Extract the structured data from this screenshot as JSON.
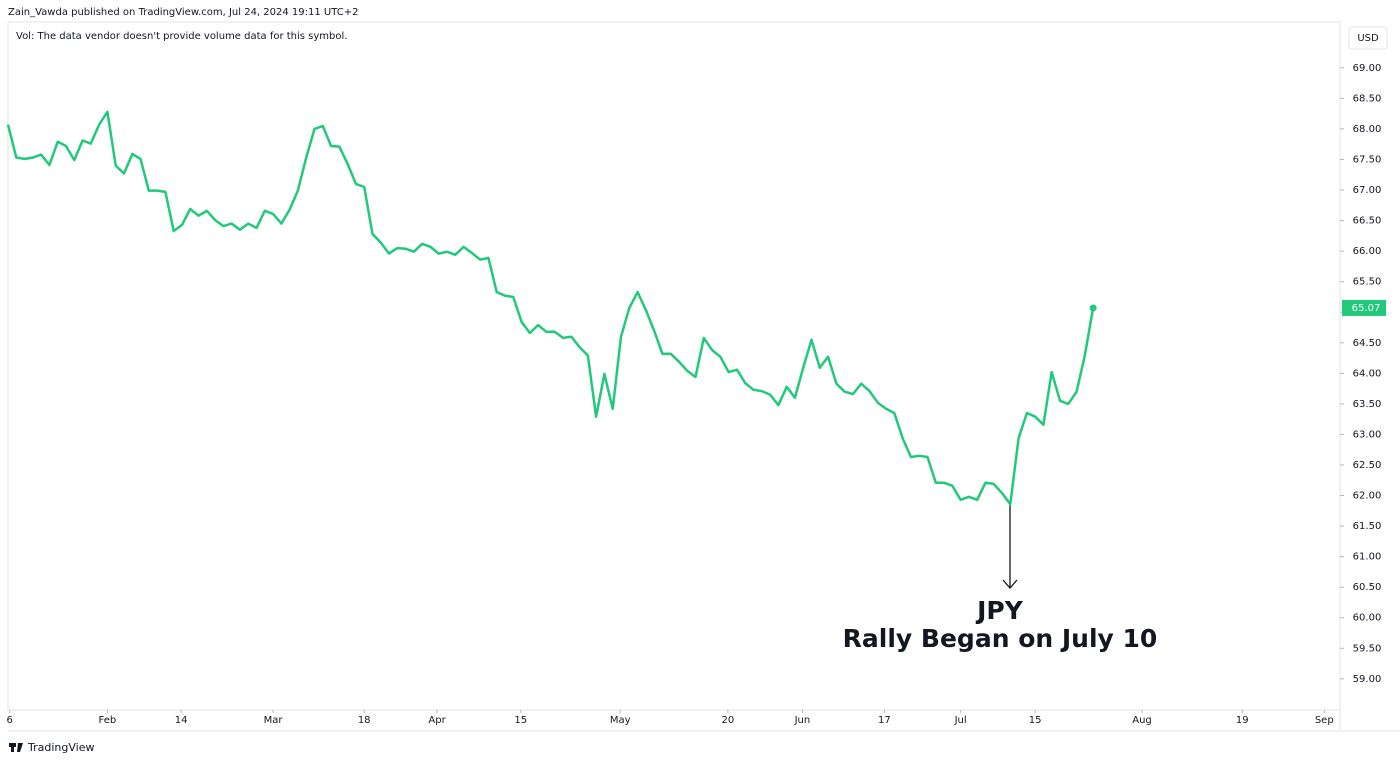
{
  "header": {
    "title": "Zain_Vawda published on TradingView.com, Jul 24, 2024 19:11 UTC+2",
    "volume_note": "Vol: The data vendor doesn't provide volume data for this symbol.",
    "currency": "USD"
  },
  "footer": {
    "brand": "TradingView"
  },
  "chart_data": {
    "type": "line",
    "color": "#22c97a",
    "annotation": {
      "title": "JPY",
      "text": "Rally Began on July 10"
    },
    "categories": [
      null,
      null,
      null,
      null,
      null,
      null,
      null,
      null,
      null,
      null,
      null,
      null,
      null,
      null,
      null,
      null,
      null,
      null,
      null,
      null,
      null,
      null,
      null,
      null,
      null,
      null,
      null,
      null,
      null,
      null,
      null,
      null,
      null,
      null,
      null,
      null,
      null,
      null,
      null,
      null,
      null,
      null,
      null,
      null,
      null,
      null,
      null,
      null,
      null,
      null,
      null,
      null,
      null,
      null,
      null,
      null,
      null,
      null,
      null,
      null,
      null,
      null,
      null,
      null,
      null,
      null,
      null,
      null,
      null,
      null,
      null,
      null,
      null,
      null,
      null,
      null,
      null,
      null,
      null,
      null,
      null,
      null,
      null,
      null,
      null,
      null,
      null,
      null,
      null,
      null,
      null,
      null,
      null,
      null,
      null,
      null,
      null,
      null,
      null,
      null,
      null,
      null,
      null,
      null,
      null,
      null,
      null,
      null,
      null,
      null,
      null,
      null,
      null,
      null,
      null,
      null,
      null,
      null,
      null,
      null,
      null,
      null,
      null,
      null,
      null,
      null,
      null,
      null,
      null,
      null,
      null,
      null
    ],
    "values": [
      68.07,
      67.53,
      67.51,
      67.53,
      67.58,
      67.41,
      67.79,
      67.72,
      67.49,
      67.81,
      67.76,
      68.07,
      68.28,
      67.4,
      67.27,
      67.59,
      67.51,
      66.99,
      66.99,
      66.97,
      66.33,
      66.43,
      66.69,
      66.58,
      66.66,
      66.51,
      66.41,
      66.45,
      66.35,
      66.45,
      66.38,
      66.66,
      66.61,
      66.45,
      66.68,
      66.99,
      67.53,
      68.0,
      68.05,
      67.72,
      67.71,
      67.43,
      67.1,
      67.05,
      66.28,
      66.14,
      65.96,
      66.05,
      66.04,
      65.99,
      66.12,
      66.07,
      65.96,
      65.99,
      65.94,
      66.07,
      65.97,
      65.86,
      65.89,
      65.33,
      65.27,
      65.25,
      64.84,
      64.66,
      64.79,
      64.68,
      64.68,
      64.58,
      64.6,
      64.43,
      64.29,
      63.29,
      63.99,
      63.42,
      64.6,
      65.07,
      65.33,
      65.04,
      64.7,
      64.32,
      64.32,
      64.19,
      64.04,
      63.94,
      64.58,
      64.38,
      64.27,
      64.02,
      64.06,
      63.84,
      63.73,
      63.71,
      63.65,
      63.48,
      63.78,
      63.6,
      64.09,
      64.55,
      64.09,
      64.27,
      63.83,
      63.7,
      63.66,
      63.83,
      63.71,
      63.52,
      63.42,
      63.35,
      62.94,
      62.63,
      62.65,
      62.63,
      62.21,
      62.21,
      62.16,
      61.93,
      61.98,
      61.93,
      62.21,
      62.19,
      62.04,
      61.86,
      62.94,
      63.35,
      63.29,
      63.16,
      64.02,
      63.55,
      63.5,
      63.7,
      64.3,
      65.07
    ],
    "xlim": [
      0,
      160.8
    ],
    "xticks": [
      {
        "value": 0.2,
        "label": "6"
      },
      {
        "value": 12.0,
        "label": "Feb"
      },
      {
        "value": 20.9,
        "label": "14"
      },
      {
        "value": 32.0,
        "label": "Mar"
      },
      {
        "value": 43.0,
        "label": "18"
      },
      {
        "value": 51.8,
        "label": "Apr"
      },
      {
        "value": 61.9,
        "label": "15"
      },
      {
        "value": 73.9,
        "label": "May"
      },
      {
        "value": 86.9,
        "label": "20"
      },
      {
        "value": 95.9,
        "label": "Jun"
      },
      {
        "value": 105.8,
        "label": "17"
      },
      {
        "value": 115.0,
        "label": "Jul"
      },
      {
        "value": 124.0,
        "label": "15"
      },
      {
        "value": 136.9,
        "label": "Aug"
      },
      {
        "value": 149.0,
        "label": "19"
      },
      {
        "value": 158.9,
        "label": "Sep"
      }
    ],
    "ylim": [
      58.49,
      69.75
    ],
    "yticks": [
      {
        "value": 59,
        "label": "59.00"
      },
      {
        "value": 59.5,
        "label": "59.50"
      },
      {
        "value": 60,
        "label": "60.00"
      },
      {
        "value": 60.5,
        "label": "60.50"
      },
      {
        "value": 61,
        "label": "61.00"
      },
      {
        "value": 61.5,
        "label": "61.50"
      },
      {
        "value": 62,
        "label": "62.00"
      },
      {
        "value": 62.5,
        "label": "62.50"
      },
      {
        "value": 63,
        "label": "63.00"
      },
      {
        "value": 63.5,
        "label": "63.50"
      },
      {
        "value": 64,
        "label": "64.00"
      },
      {
        "value": 64.5,
        "label": "64.50"
      },
      {
        "value": 65,
        "label": "65.00"
      },
      {
        "value": 65.5,
        "label": "65.50"
      },
      {
        "value": 66,
        "label": "66.00"
      },
      {
        "value": 66.5,
        "label": "66.50"
      },
      {
        "value": 67,
        "label": "67.00"
      },
      {
        "value": 67.5,
        "label": "67.50"
      },
      {
        "value": 68,
        "label": "68.00"
      },
      {
        "value": 68.5,
        "label": "68.50"
      },
      {
        "value": 69,
        "label": "69.00"
      }
    ]
  }
}
